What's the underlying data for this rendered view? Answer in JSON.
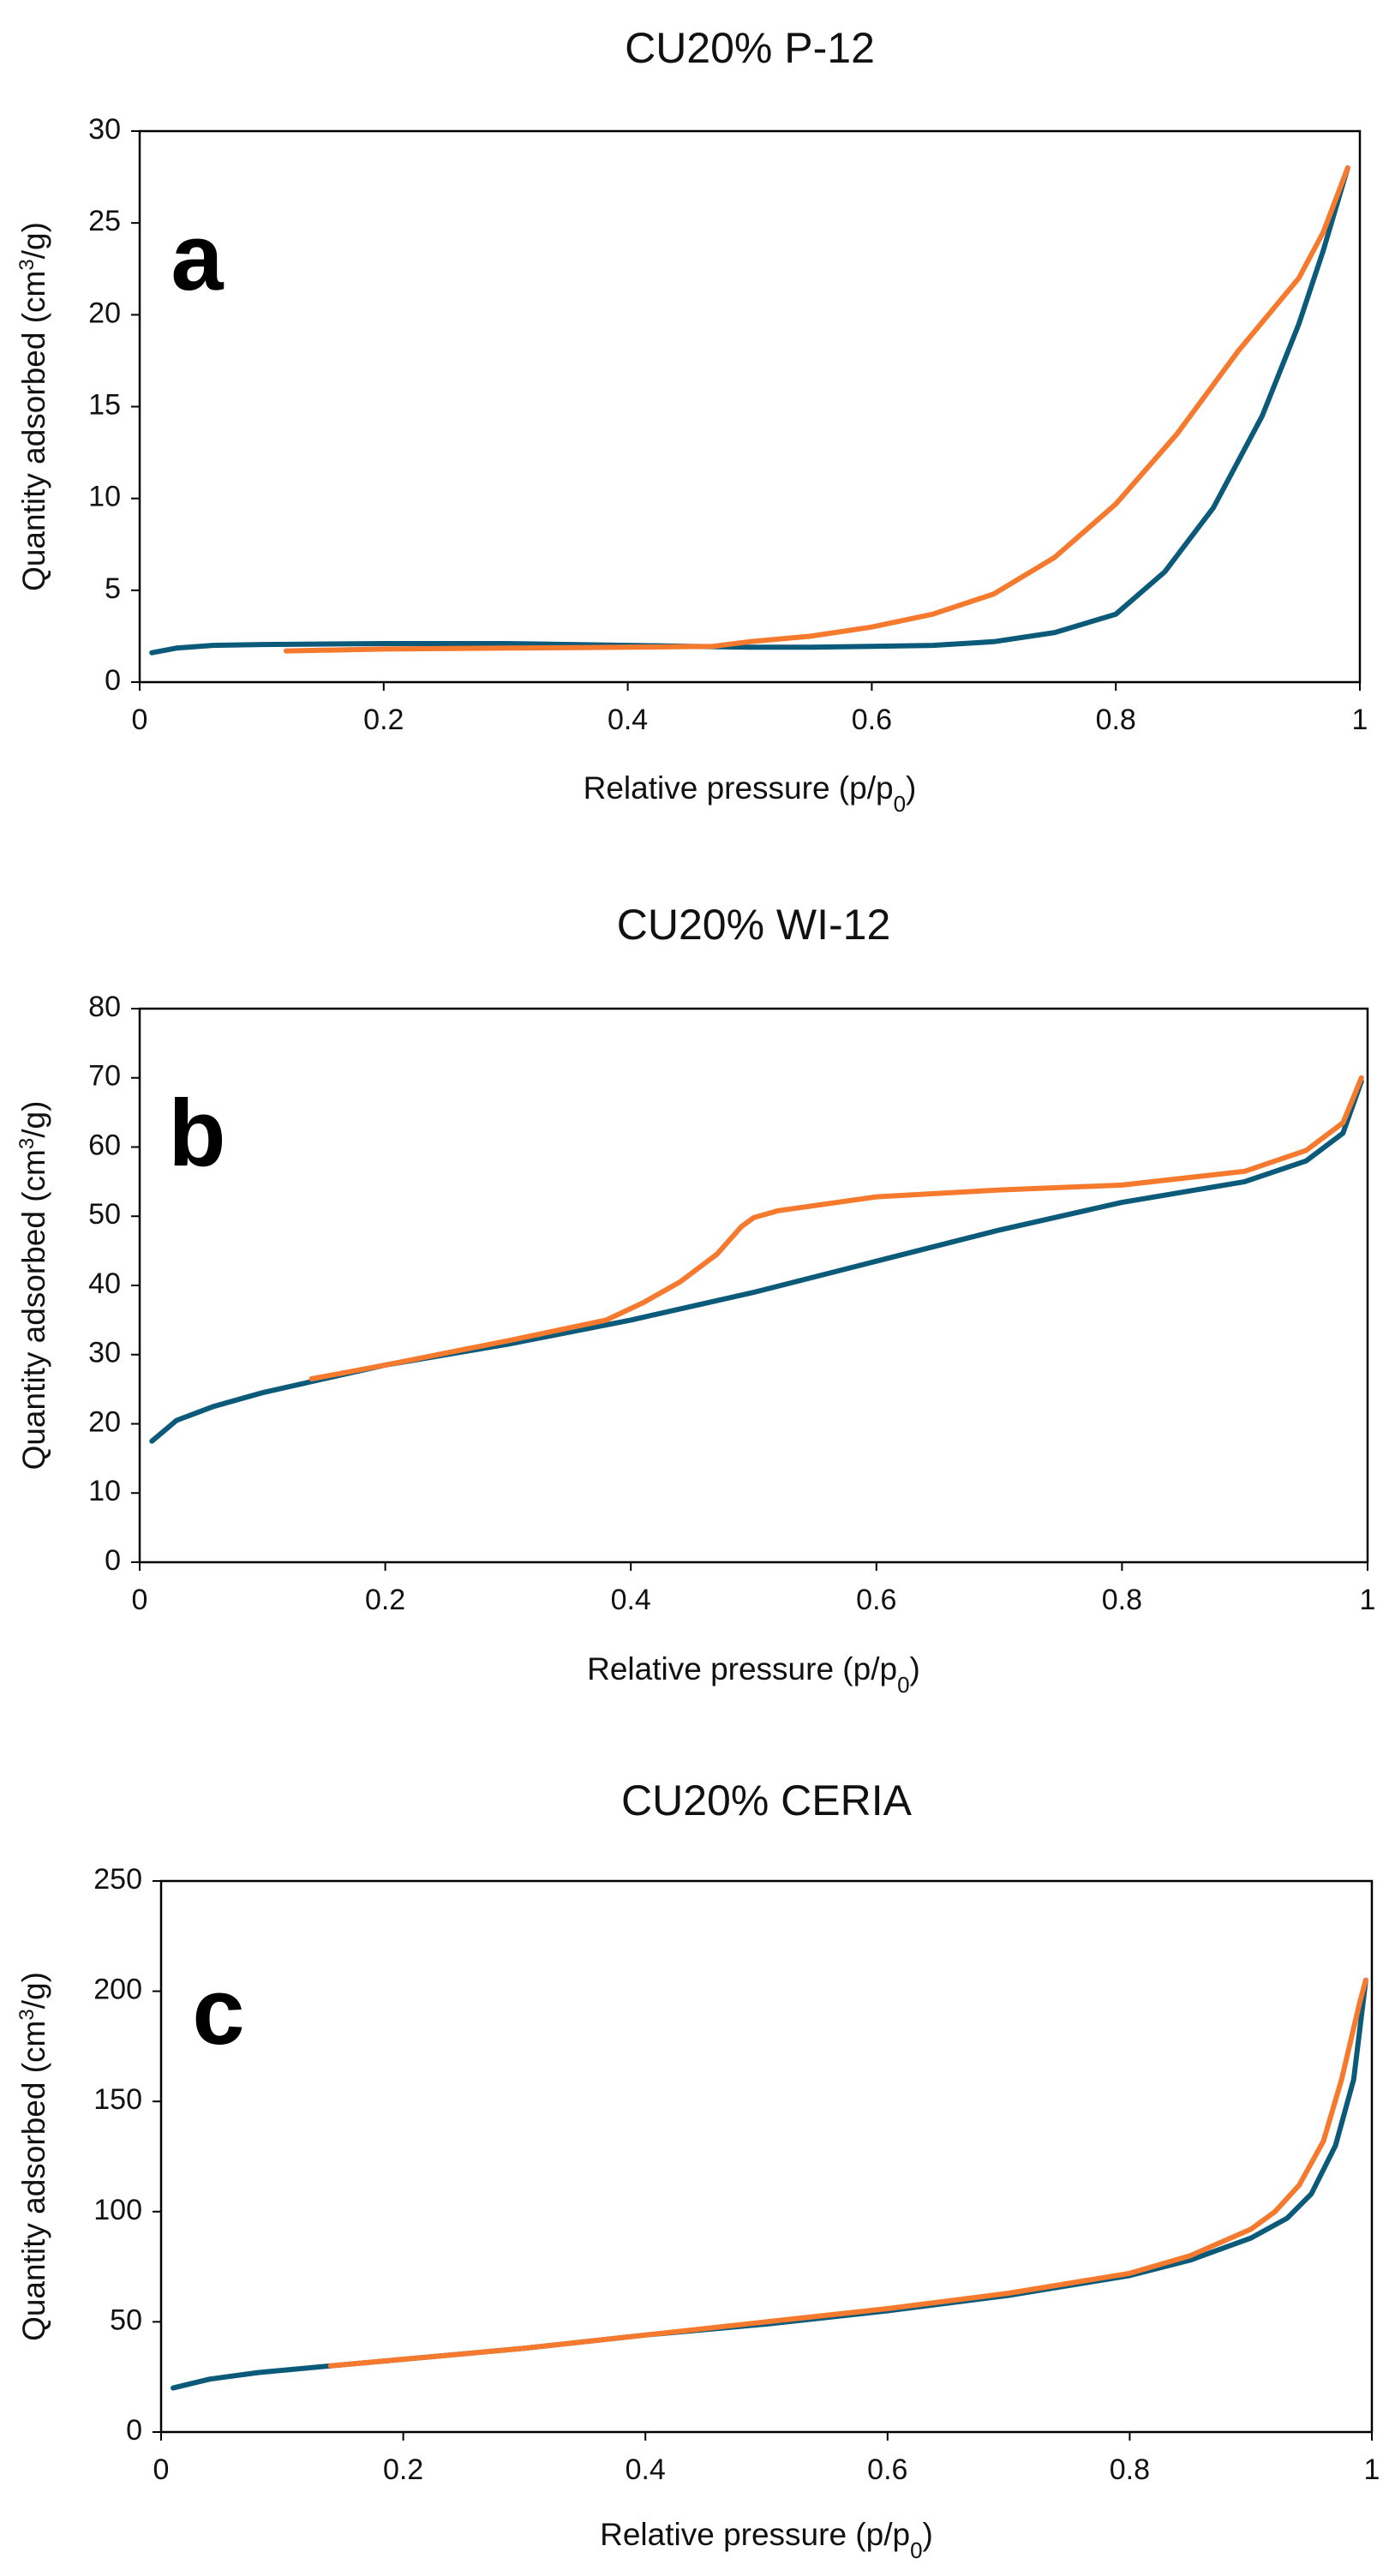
{
  "colors": {
    "adsorption": "#0b5a7a",
    "desorption": "#f57a2e"
  },
  "chart_data": [
    {
      "type": "line",
      "title": "CU20% P-12",
      "panel_label": "a",
      "xlabel": "Relative pressure (p/p",
      "xlabel_subscript": "0",
      "xlabel_suffix": ")",
      "ylabel": "Quantity adsorbed (cm",
      "ylabel_superscript": "3",
      "ylabel_suffix": "/g)",
      "xlim": [
        0,
        1
      ],
      "ylim": [
        0,
        30
      ],
      "xticks": [
        "0",
        "0.2",
        "0.4",
        "0.6",
        "0.8",
        "1"
      ],
      "yticks": [
        "0",
        "5",
        "10",
        "15",
        "20",
        "25",
        "30"
      ],
      "grid": false,
      "legend": "none",
      "series": [
        {
          "x": [
            0.01,
            0.03,
            0.06,
            0.1,
            0.2,
            0.3,
            0.4,
            0.45,
            0.5,
            0.55,
            0.6,
            0.65,
            0.7,
            0.75,
            0.8,
            0.84,
            0.88,
            0.92,
            0.95,
            0.97,
            0.99
          ],
          "y": [
            1.6,
            1.85,
            2.0,
            2.05,
            2.1,
            2.1,
            2.0,
            1.95,
            1.9,
            1.9,
            1.95,
            2.0,
            2.2,
            2.7,
            3.7,
            6.0,
            9.5,
            14.5,
            19.5,
            23.5,
            28
          ]
        },
        {
          "x": [
            0.12,
            0.2,
            0.3,
            0.4,
            0.47,
            0.5,
            0.55,
            0.6,
            0.65,
            0.7,
            0.75,
            0.8,
            0.85,
            0.9,
            0.95,
            0.97,
            0.99
          ],
          "y": [
            1.7,
            1.8,
            1.85,
            1.9,
            1.95,
            2.2,
            2.5,
            3.0,
            3.7,
            4.8,
            6.8,
            9.7,
            13.5,
            18.0,
            22.0,
            24.5,
            28
          ]
        }
      ]
    },
    {
      "type": "line",
      "title": "CU20% WI-12",
      "panel_label": "b",
      "xlabel": "Relative pressure (p/p",
      "xlabel_subscript": "0",
      "xlabel_suffix": ")",
      "ylabel": "Quantity adsorbed (cm",
      "ylabel_superscript": "3",
      "ylabel_suffix": "/g)",
      "xlim": [
        0,
        1
      ],
      "ylim": [
        0,
        80
      ],
      "xticks": [
        "0",
        "0.2",
        "0.4",
        "0.6",
        "0.8",
        "1"
      ],
      "yticks": [
        "0",
        "10",
        "20",
        "30",
        "40",
        "50",
        "60",
        "70",
        "80"
      ],
      "grid": false,
      "legend": "none",
      "series": [
        {
          "x": [
            0.01,
            0.03,
            0.06,
            0.1,
            0.15,
            0.2,
            0.3,
            0.4,
            0.5,
            0.6,
            0.7,
            0.8,
            0.9,
            0.95,
            0.98,
            0.995
          ],
          "y": [
            17.5,
            20.5,
            22.5,
            24.5,
            26.5,
            28.5,
            31.5,
            35.0,
            39.0,
            43.5,
            48.0,
            52.0,
            55.0,
            58.0,
            62.0,
            69.5
          ]
        },
        {
          "x": [
            0.14,
            0.2,
            0.3,
            0.38,
            0.41,
            0.44,
            0.47,
            0.49,
            0.5,
            0.52,
            0.6,
            0.7,
            0.8,
            0.9,
            0.95,
            0.98,
            0.995
          ],
          "y": [
            26.5,
            28.5,
            32.0,
            35.0,
            37.5,
            40.5,
            44.5,
            48.5,
            49.8,
            50.8,
            52.8,
            53.8,
            54.5,
            56.5,
            59.5,
            63.5,
            70.0
          ]
        }
      ]
    },
    {
      "type": "line",
      "title": "CU20% CERIA",
      "panel_label": "c",
      "xlabel": "Relative pressure (p/p",
      "xlabel_subscript": "0",
      "xlabel_suffix": ")",
      "ylabel": "Quantity adsorbed (cm",
      "ylabel_superscript": "3",
      "ylabel_suffix": "/g)",
      "xlim": [
        0,
        1
      ],
      "ylim": [
        0,
        250
      ],
      "xticks": [
        "0",
        "0.2",
        "0.4",
        "0.6",
        "0.8",
        "1"
      ],
      "yticks": [
        "0",
        "50",
        "100",
        "150",
        "200",
        "250"
      ],
      "grid": false,
      "legend": "none",
      "series": [
        {
          "x": [
            0.01,
            0.04,
            0.08,
            0.14,
            0.2,
            0.3,
            0.4,
            0.5,
            0.6,
            0.7,
            0.8,
            0.85,
            0.9,
            0.93,
            0.95,
            0.97,
            0.985,
            0.995
          ],
          "y": [
            20,
            24,
            27,
            30,
            33,
            38,
            44,
            49,
            55,
            62,
            71,
            78,
            88,
            97,
            108,
            130,
            160,
            205
          ]
        },
        {
          "x": [
            0.14,
            0.2,
            0.3,
            0.4,
            0.5,
            0.6,
            0.7,
            0.8,
            0.85,
            0.9,
            0.92,
            0.94,
            0.96,
            0.975,
            0.99,
            0.995
          ],
          "y": [
            30,
            33,
            38,
            44,
            50,
            56,
            63,
            72,
            80,
            92,
            100,
            112,
            132,
            160,
            195,
            205
          ]
        }
      ]
    }
  ]
}
